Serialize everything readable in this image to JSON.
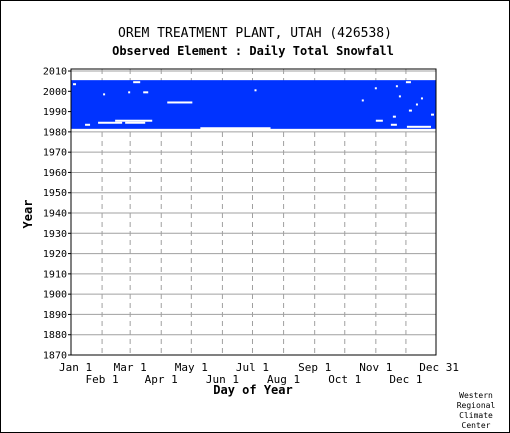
{
  "chart_data": {
    "type": "heatmap",
    "title": "OREM TREATMENT PLANT, UTAH   (426538)",
    "subtitle": "Observed Element : Daily Total Snowfall",
    "xlabel": "Day of Year",
    "ylabel": "Year",
    "ylim": [
      1870,
      2011
    ],
    "yticks": [
      2010,
      2000,
      1990,
      1980,
      1970,
      1960,
      1950,
      1940,
      1930,
      1920,
      1910,
      1900,
      1890,
      1880,
      1870
    ],
    "xticks_upper": [
      {
        "label": "Jan 1",
        "day": 1
      },
      {
        "label": "Mar 1",
        "day": 60
      },
      {
        "label": "May 1",
        "day": 121
      },
      {
        "label": "Jul 1",
        "day": 182
      },
      {
        "label": "Sep 1",
        "day": 244
      },
      {
        "label": "Nov 1",
        "day": 305
      },
      {
        "label": "Dec 31",
        "day": 365
      }
    ],
    "xticks_lower": [
      {
        "label": "Feb 1",
        "day": 32
      },
      {
        "label": "Apr 1",
        "day": 91
      },
      {
        "label": "Jun 1",
        "day": 152
      },
      {
        "label": "Aug 1",
        "day": 213
      },
      {
        "label": "Oct 1",
        "day": 274
      },
      {
        "label": "Dec 1",
        "day": 335
      }
    ],
    "grid": true,
    "colors": {
      "observed": "#0033ff",
      "missing": "#ffffff",
      "grid": "#a0a0a0"
    },
    "observed_period": {
      "start_year": 1981.5,
      "end_year": 2005.5,
      "day_start": 1,
      "day_end": 365
    },
    "missing_segments": [
      {
        "year": 1981.8,
        "day_start": 130,
        "day_end": 200
      },
      {
        "year": 1983.5,
        "day_start": 15,
        "day_end": 20
      },
      {
        "year": 1984.5,
        "day_start": 28,
        "day_end": 52
      },
      {
        "year": 1984.5,
        "day_start": 55,
        "day_end": 75
      },
      {
        "year": 1985.5,
        "day_start": 45,
        "day_end": 82
      },
      {
        "year": 1985.5,
        "day_start": 305,
        "day_end": 312
      },
      {
        "year": 1983.5,
        "day_start": 320,
        "day_end": 326
      },
      {
        "year": 1982.5,
        "day_start": 336,
        "day_end": 360
      },
      {
        "year": 1994.5,
        "day_start": 97,
        "day_end": 122
      },
      {
        "year": 1999.5,
        "day_start": 58,
        "day_end": 60
      },
      {
        "year": 1999.5,
        "day_start": 73,
        "day_end": 78
      },
      {
        "year": 2003.5,
        "day_start": 3,
        "day_end": 6
      },
      {
        "year": 2004.5,
        "day_start": 63,
        "day_end": 70
      },
      {
        "year": 2004.5,
        "day_start": 335,
        "day_end": 340
      },
      {
        "year": 2000.5,
        "day_start": 184,
        "day_end": 186
      },
      {
        "year": 1995.5,
        "day_start": 291,
        "day_end": 293
      },
      {
        "year": 1998.5,
        "day_start": 33,
        "day_end": 35
      },
      {
        "year": 1996.5,
        "day_start": 350,
        "day_end": 352
      },
      {
        "year": 1993.5,
        "day_start": 345,
        "day_end": 347
      },
      {
        "year": 1990.5,
        "day_start": 338,
        "day_end": 341
      },
      {
        "year": 1988.5,
        "day_start": 360,
        "day_end": 363
      },
      {
        "year": 1987.5,
        "day_start": 322,
        "day_end": 325
      },
      {
        "year": 2001.5,
        "day_start": 304,
        "day_end": 306
      },
      {
        "year": 2002.5,
        "day_start": 325,
        "day_end": 327
      },
      {
        "year": 1997.5,
        "day_start": 328,
        "day_end": 330
      }
    ]
  },
  "credit": [
    "Western",
    "Regional",
    "Climate",
    "Center"
  ]
}
